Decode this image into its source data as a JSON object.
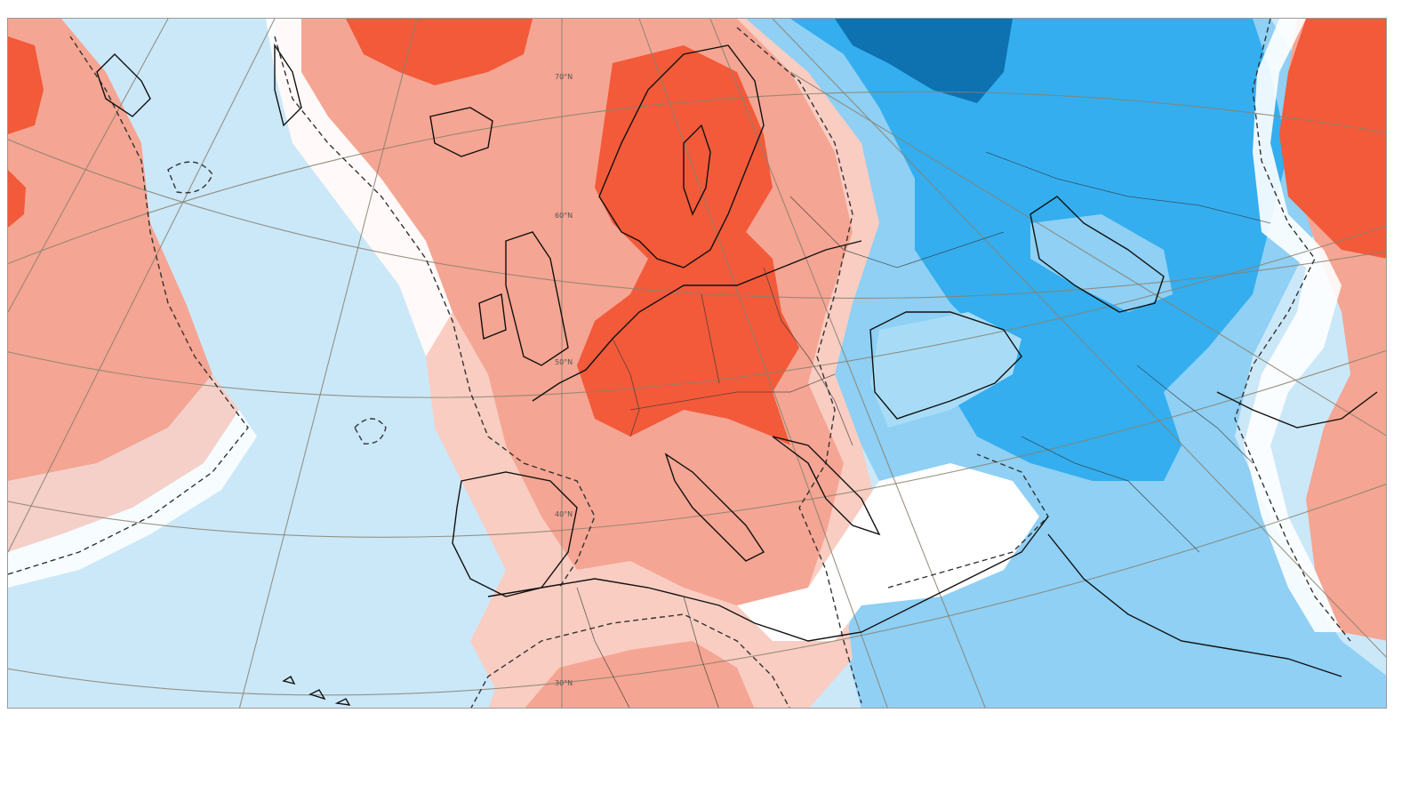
{
  "map": {
    "type": "temperature anomaly map",
    "projection": "polar stereographic",
    "region": "Europe, North Atlantic, Middle East",
    "latitude_labels": [
      {
        "id": "lat-70",
        "text": "70°N"
      },
      {
        "id": "lat-60",
        "text": "60°N"
      },
      {
        "id": "lat-50",
        "text": "50°N"
      },
      {
        "id": "lat-40",
        "text": "40°N"
      },
      {
        "id": "lat-30",
        "text": "30°N"
      }
    ],
    "colors": {
      "ocean_base": "#cbe8f9",
      "warm_strong": "#f25a3a",
      "warm_medium": "#f5a593",
      "warm_light": "#f9cdc2",
      "neutral": "#ffffff",
      "cool_light": "#cbe8f9",
      "cool_medium": "#8fd0f4",
      "cool_strong": "#34aeef",
      "cool_deep": "#0e71b0",
      "gridline": "#8a8170",
      "coastline": "#111111"
    },
    "zero_contour_style": "dashed"
  }
}
